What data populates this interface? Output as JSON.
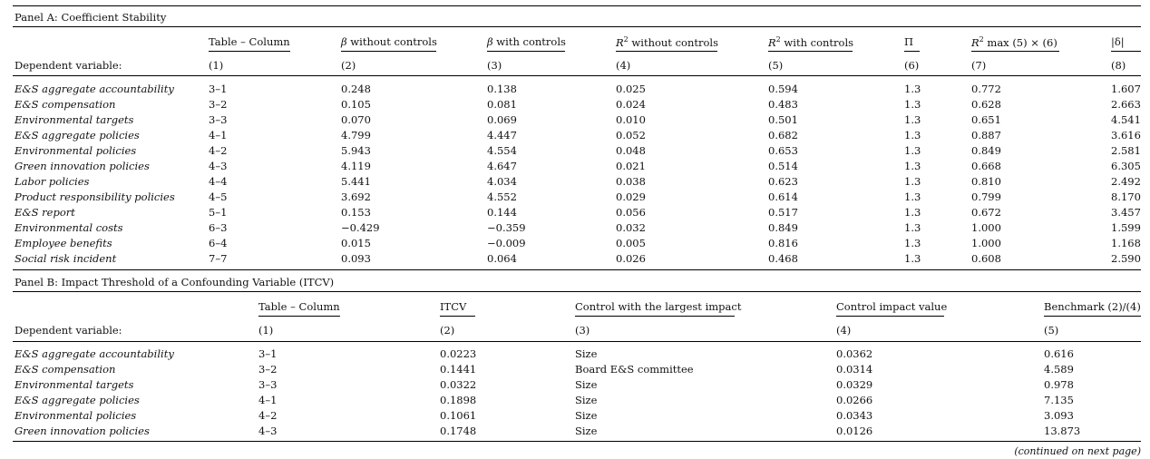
{
  "panelA": {
    "title": "Panel A: Coefficient Stability",
    "dep_label": "Dependent variable:",
    "headers": [
      "Table – Column",
      "β without controls",
      "β with controls",
      "R² without controls",
      "R² with controls",
      "Π",
      "R² max (5) × (6)",
      "|δ|"
    ],
    "nums": [
      "(1)",
      "(2)",
      "(3)",
      "(4)",
      "(5)",
      "(6)",
      "(7)",
      "(8)"
    ],
    "rows": [
      [
        "E&S aggregate accountability",
        "3–1",
        "0.248",
        "0.138",
        "0.025",
        "0.594",
        "1.3",
        "0.772",
        "1.607"
      ],
      [
        "E&S compensation",
        "3–2",
        "0.105",
        "0.081",
        "0.024",
        "0.483",
        "1.3",
        "0.628",
        "2.663"
      ],
      [
        "Environmental targets",
        "3–3",
        "0.070",
        "0.069",
        "0.010",
        "0.501",
        "1.3",
        "0.651",
        "4.541"
      ],
      [
        "E&S aggregate policies",
        "4–1",
        "4.799",
        "4.447",
        "0.052",
        "0.682",
        "1.3",
        "0.887",
        "3.616"
      ],
      [
        "Environmental policies",
        "4–2",
        "5.943",
        "4.554",
        "0.048",
        "0.653",
        "1.3",
        "0.849",
        "2.581"
      ],
      [
        "Green innovation policies",
        "4–3",
        "4.119",
        "4.647",
        "0.021",
        "0.514",
        "1.3",
        "0.668",
        "6.305"
      ],
      [
        "Labor policies",
        "4–4",
        "5.441",
        "4.034",
        "0.038",
        "0.623",
        "1.3",
        "0.810",
        "2.492"
      ],
      [
        "Product responsibility policies",
        "4–5",
        "3.692",
        "4.552",
        "0.029",
        "0.614",
        "1.3",
        "0.799",
        "8.170"
      ],
      [
        "E&S report",
        "5–1",
        "0.153",
        "0.144",
        "0.056",
        "0.517",
        "1.3",
        "0.672",
        "3.457"
      ],
      [
        "Environmental costs",
        "6–3",
        "−0.429",
        "−0.359",
        "0.032",
        "0.849",
        "1.3",
        "1.000",
        "1.599"
      ],
      [
        "Employee benefits",
        "6–4",
        "0.015",
        "−0.009",
        "0.005",
        "0.816",
        "1.3",
        "1.000",
        "1.168"
      ],
      [
        "Social risk incident",
        "7–7",
        "0.093",
        "0.064",
        "0.026",
        "0.468",
        "1.3",
        "0.608",
        "2.590"
      ]
    ]
  },
  "panelB": {
    "title": "Panel B: Impact Threshold of a Confounding Variable (ITCV)",
    "dep_label": "Dependent variable:",
    "headers": [
      "Table – Column",
      "ITCV",
      "Control with the largest impact",
      "Control impact value",
      "Benchmark (2)/(4)"
    ],
    "nums": [
      "(1)",
      "(2)",
      "(3)",
      "(4)",
      "(5)"
    ],
    "rows": [
      [
        "E&S aggregate accountability",
        "3–1",
        "0.0223",
        "Size",
        "0.0362",
        "0.616"
      ],
      [
        "E&S compensation",
        "3–2",
        "0.1441",
        "Board E&S committee",
        "0.0314",
        "4.589"
      ],
      [
        "Environmental targets",
        "3–3",
        "0.0322",
        "Size",
        "0.0329",
        "0.978"
      ],
      [
        "E&S aggregate policies",
        "4–1",
        "0.1898",
        "Size",
        "0.0266",
        "7.135"
      ],
      [
        "Environmental policies",
        "4–2",
        "0.1061",
        "Size",
        "0.0343",
        "3.093"
      ],
      [
        "Green innovation policies",
        "4–3",
        "0.1748",
        "Size",
        "0.0126",
        "13.873"
      ]
    ]
  },
  "footnote": "(continued on next page)"
}
